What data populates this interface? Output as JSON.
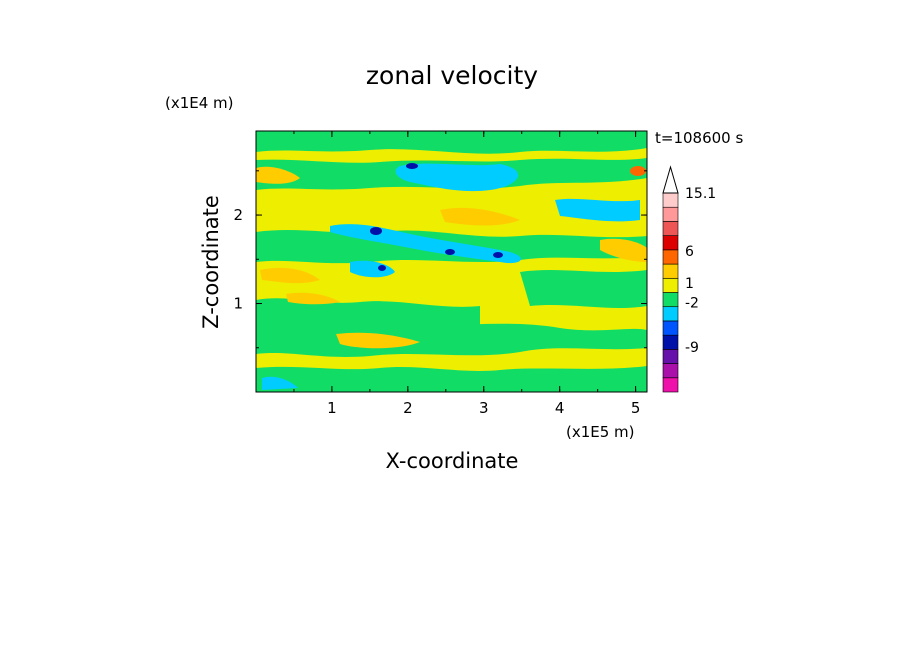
{
  "chart_data": {
    "type": "heatmap",
    "title": "zonal velocity",
    "xlabel": "X-coordinate",
    "ylabel": "Z-coordinate",
    "x_unit": "(x1E5 m)",
    "y_unit": "(x1E4 m)",
    "time_label": "t=108600 s",
    "xlim": [
      0,
      5.15
    ],
    "ylim": [
      0,
      2.95
    ],
    "x_ticks": [
      "1",
      "2",
      "3",
      "4",
      "5"
    ],
    "y_ticks": [
      "1",
      "2"
    ],
    "colorbar": {
      "tick_labels": [
        "15.1",
        "6",
        "1",
        "-2",
        "-9"
      ],
      "tick_values": [
        15.1,
        6,
        1,
        -2,
        -9
      ],
      "colors": [
        "#ee11aa",
        "#aa11aa",
        "#6611aa",
        "#0011aa",
        "#0055ff",
        "#00ccff",
        "#11dd66",
        "#eeee00",
        "#ffcc00",
        "#ff6600",
        "#dd0000",
        "#ee5555",
        "#ff9999",
        "#ffcccc"
      ]
    },
    "background_color": "#eeee00",
    "features": [
      {
        "kind": "band",
        "level": "green",
        "x": [
          0,
          5.15
        ],
        "z": [
          2.3,
          2.6
        ],
        "note": "upper green band"
      },
      {
        "kind": "patch",
        "level": "cyan",
        "x": [
          1.8,
          3.5
        ],
        "z": [
          2.3,
          2.55
        ]
      },
      {
        "kind": "core",
        "level": "blue",
        "x": 1.55,
        "z": 1.85
      },
      {
        "kind": "core",
        "level": "blue",
        "x": 2.05,
        "z": 2.6
      },
      {
        "kind": "core",
        "level": "blue",
        "x": 2.55,
        "z": 1.6
      },
      {
        "kind": "core",
        "level": "blue",
        "x": 3.15,
        "z": 1.55
      },
      {
        "kind": "core",
        "level": "blue",
        "x": 1.6,
        "z": 1.4
      },
      {
        "kind": "core",
        "level": "orange",
        "x": 5.05,
        "z": 2.5
      },
      {
        "kind": "patch",
        "level": "light-orange",
        "x": [
          2.5,
          3.2
        ],
        "z": [
          1.9,
          2.1
        ]
      },
      {
        "kind": "patch",
        "level": "light-orange",
        "x": [
          1.0,
          2.2
        ],
        "z": [
          0.4,
          0.65
        ]
      }
    ]
  }
}
